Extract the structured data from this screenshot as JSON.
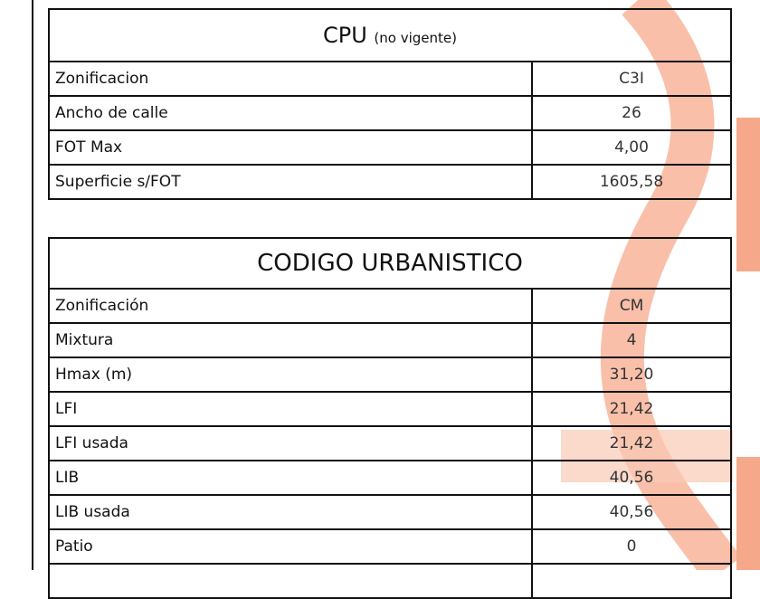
{
  "cpu_table": {
    "title": "CPU",
    "subtitle": "(no vigente)",
    "rows": [
      {
        "label": "Zonificacion",
        "value": "C3I"
      },
      {
        "label": "Ancho de calle",
        "value": "26"
      },
      {
        "label": "FOT Max",
        "value": "4,00"
      },
      {
        "label": "Superficie s/FOT",
        "value": "1605,58"
      }
    ]
  },
  "codigo_table": {
    "title": "CODIGO URBANISTICO",
    "rows": [
      {
        "label": "Zonificación",
        "value": "CM"
      },
      {
        "label": "Mixtura",
        "value": "4"
      },
      {
        "label": "Hmax (m)",
        "value": "31,20"
      },
      {
        "label": "LFI",
        "value": "21,42"
      },
      {
        "label": "LFI usada",
        "value": "21,42"
      },
      {
        "label": "LIB",
        "value": "40,56"
      },
      {
        "label": "LIB usada",
        "value": "40,56"
      },
      {
        "label": "Patio",
        "value": "0"
      },
      {
        "label": "",
        "value": ""
      }
    ]
  },
  "colors": {
    "watermark": "#f6a98a"
  }
}
